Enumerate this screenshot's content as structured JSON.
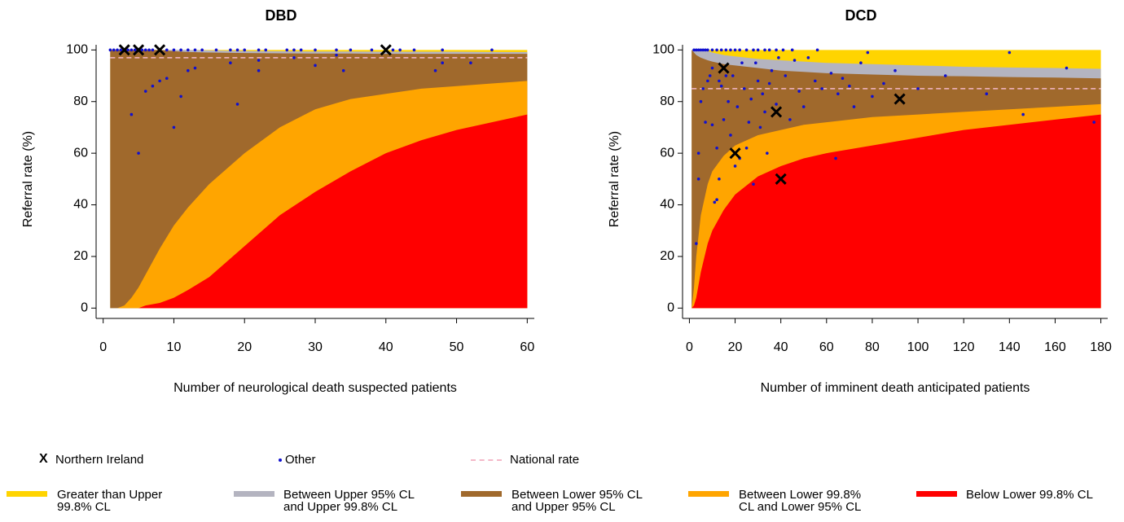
{
  "chart_data": [
    {
      "type": "funnel",
      "title": "DBD",
      "x_label": "Number of neurological death suspected patients",
      "y_label": "Referral rate (%)",
      "xlim": [
        -1,
        61
      ],
      "ylim": [
        -4,
        102
      ],
      "xticks": [
        0,
        10,
        20,
        30,
        40,
        50,
        60
      ],
      "yticks": [
        0,
        20,
        40,
        60,
        80,
        100
      ],
      "national_rate": 97,
      "limits": {
        "x": [
          1,
          2,
          3,
          4,
          5,
          6,
          8,
          10,
          12,
          15,
          20,
          25,
          30,
          35,
          40,
          45,
          50,
          55,
          60
        ],
        "upper998": [
          100,
          100,
          100,
          100,
          100,
          100,
          100,
          100,
          100,
          99.8,
          99.6,
          99.5,
          99.4,
          99.4,
          99.3,
          99.3,
          99.3,
          99.2,
          99.2
        ],
        "upper95": [
          100,
          100,
          100,
          100,
          100,
          100,
          100,
          99.5,
          99.2,
          99,
          98.8,
          98.7,
          98.6,
          98.6,
          98.5,
          98.5,
          98.5,
          98.5,
          98.5
        ],
        "lower95": [
          0,
          0,
          1,
          4,
          8,
          13,
          23,
          32,
          39,
          48,
          60,
          70,
          77,
          81,
          83,
          85,
          86,
          87,
          88
        ],
        "lower998": [
          0,
          0,
          0,
          0,
          0,
          1,
          2,
          4,
          7,
          12,
          24,
          36,
          45,
          53,
          60,
          65,
          69,
          72,
          75
        ]
      },
      "other": {
        "x": [
          1,
          1.5,
          2,
          2.5,
          3.5,
          4,
          4.5,
          5.5,
          6,
          6.5,
          7,
          9,
          10,
          11,
          12,
          13,
          14,
          16,
          18,
          19,
          20,
          22,
          23,
          26,
          27,
          28,
          30,
          33,
          35,
          38,
          41,
          42,
          44,
          48,
          55,
          4,
          5,
          6,
          7,
          8,
          9,
          10,
          11,
          12,
          13,
          18,
          19,
          22,
          22,
          27,
          30,
          33,
          34,
          47,
          48,
          52
        ],
        "y": [
          100,
          100,
          100,
          100,
          100,
          100,
          100,
          100,
          100,
          100,
          100,
          100,
          100,
          100,
          100,
          100,
          100,
          100,
          100,
          100,
          100,
          100,
          100,
          100,
          100,
          100,
          100,
          100,
          100,
          100,
          100,
          100,
          100,
          100,
          100,
          75,
          60,
          84,
          86,
          88,
          89,
          70,
          82,
          92,
          93,
          95,
          79,
          92,
          96,
          97,
          94,
          98,
          92,
          92,
          95,
          95
        ]
      },
      "northern_ireland": {
        "x": [
          3,
          5,
          8,
          40
        ],
        "y": [
          100,
          100,
          100,
          100
        ]
      }
    },
    {
      "type": "funnel",
      "title": "DCD",
      "x_label": "Number of imminent death anticipated patients",
      "y_label": "Referral rate (%)",
      "xlim": [
        -3,
        183
      ],
      "ylim": [
        -4,
        102
      ],
      "xticks": [
        0,
        20,
        40,
        60,
        80,
        100,
        120,
        140,
        160,
        180
      ],
      "yticks": [
        0,
        20,
        40,
        60,
        80,
        100
      ],
      "national_rate": 85,
      "limits": {
        "x": [
          1,
          2,
          3,
          5,
          8,
          10,
          15,
          20,
          30,
          40,
          50,
          60,
          80,
          100,
          120,
          140,
          160,
          180
        ],
        "upper998": [
          100,
          100,
          100,
          100,
          99.5,
          99,
          98,
          97.5,
          96.5,
          96,
          95.5,
          95,
          94.5,
          94,
          93.5,
          93.2,
          93,
          92.7
        ],
        "upper95": [
          100,
          99,
          98,
          97,
          96,
          95.5,
          94.5,
          94,
          93,
          92,
          91.5,
          91,
          90.5,
          90,
          89.8,
          89.5,
          89.3,
          89
        ],
        "lower95": [
          0,
          8,
          20,
          36,
          48,
          53,
          59,
          63,
          67,
          69,
          71,
          72,
          74,
          75,
          76,
          77,
          78,
          79
        ],
        "lower998": [
          0,
          1,
          4,
          14,
          25,
          30,
          38,
          44,
          51,
          55,
          58,
          60,
          63,
          66,
          69,
          71,
          73,
          75
        ]
      },
      "other": {
        "x": [
          2,
          3,
          4,
          5,
          6,
          7,
          8,
          10,
          12,
          14,
          16,
          18,
          20,
          22,
          25,
          28,
          30,
          33,
          35,
          38,
          41,
          45,
          56,
          3,
          4,
          4,
          5,
          6,
          7,
          8,
          9,
          10,
          10,
          11,
          12,
          12,
          13,
          13,
          14,
          15,
          16,
          17,
          18,
          19,
          20,
          21,
          22,
          23,
          24,
          25,
          26,
          27,
          28,
          29,
          30,
          31,
          32,
          33,
          34,
          35,
          36,
          38,
          39,
          42,
          44,
          46,
          48,
          50,
          52,
          55,
          58,
          62,
          64,
          65,
          67,
          70,
          72,
          75,
          78,
          80,
          85,
          90,
          100,
          112,
          130,
          140,
          146,
          165,
          177
        ],
        "y": [
          100,
          100,
          100,
          100,
          100,
          100,
          100,
          100,
          100,
          100,
          100,
          100,
          100,
          100,
          100,
          100,
          100,
          100,
          100,
          100,
          100,
          100,
          100,
          25,
          50,
          60,
          80,
          85,
          72,
          88,
          90,
          71,
          93,
          41,
          42,
          62,
          50,
          88,
          86,
          73,
          90,
          80,
          67,
          90,
          55,
          78,
          58,
          95,
          85,
          62,
          72,
          81,
          48,
          95,
          88,
          70,
          83,
          76,
          60,
          87,
          92,
          79,
          97,
          90,
          73,
          96,
          84,
          78,
          97,
          88,
          85,
          91,
          58,
          83,
          89,
          86,
          78,
          95,
          99,
          82,
          87,
          92,
          85,
          90,
          83,
          99,
          75,
          93,
          72
        ]
      },
      "northern_ireland": {
        "x": [
          15,
          38,
          92,
          20,
          40
        ],
        "y": [
          93,
          76,
          81,
          60,
          50
        ]
      }
    }
  ],
  "legend": {
    "items": [
      {
        "symbol": "X",
        "label": "Northern Ireland",
        "color": "#000000"
      },
      {
        "label": "Other",
        "color": "#1010d0"
      },
      {
        "label": "National rate",
        "color": "#f4b8c8"
      }
    ],
    "bands": [
      {
        "label": "Greater than Upper 99.8% CL",
        "color": "#ffd400"
      },
      {
        "label": "Between Upper 95% CL and Upper 99.8% CL",
        "color": "#b4b4c0"
      },
      {
        "label": "Between Lower 95% CL and Upper 95% CL",
        "color": "#a0692c"
      },
      {
        "label": "Between Lower 99.8% CL and Lower 95% CL",
        "color": "#ffa500"
      },
      {
        "label": "Below Lower 99.8% CL",
        "color": "#ff0000"
      }
    ]
  }
}
